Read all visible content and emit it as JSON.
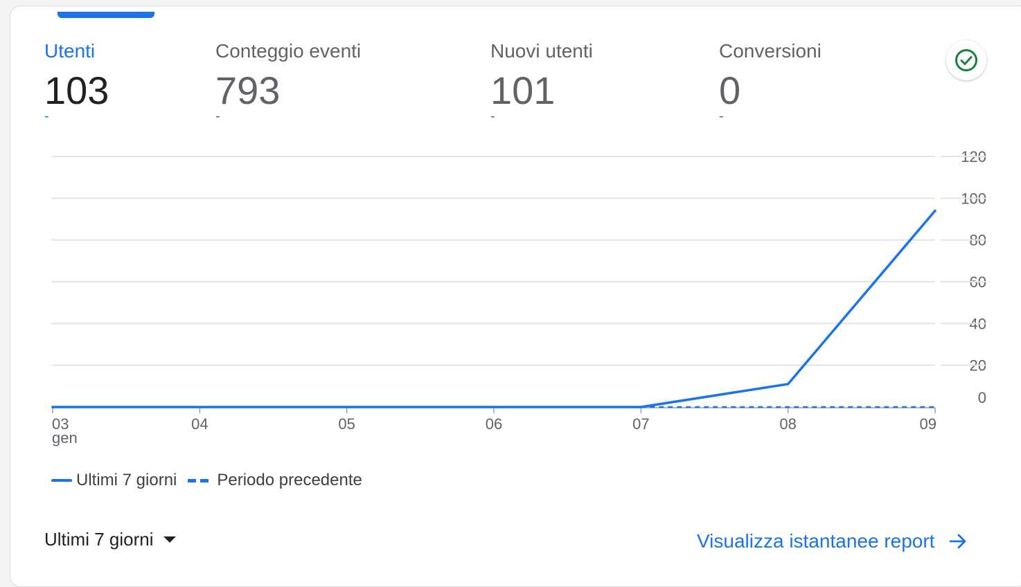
{
  "metrics": [
    {
      "label": "Utenti",
      "value": "103",
      "change": "-"
    },
    {
      "label": "Conteggio eventi",
      "value": "793",
      "change": "-"
    },
    {
      "label": "Nuovi utenti",
      "value": "101",
      "change": "-"
    },
    {
      "label": "Conversioni",
      "value": "0",
      "change": "-"
    }
  ],
  "colors": {
    "accent": "#1a73e8",
    "status_ok": "#188038"
  },
  "icons": {
    "status": "check-circle-icon",
    "dropdown": "caret-down-icon",
    "link": "arrow-right-icon"
  },
  "chart_data": {
    "type": "line",
    "categories": [
      "03",
      "04",
      "05",
      "06",
      "07",
      "08",
      "09"
    ],
    "x_sublabel": "gen",
    "ylim": [
      0,
      120
    ],
    "y_ticks": [
      0,
      20,
      40,
      60,
      80,
      100,
      120
    ],
    "grid": true,
    "legend_position": "bottom-left",
    "series": [
      {
        "name": "Ultimi 7 giorni",
        "style": "solid",
        "values": [
          0,
          0,
          0,
          0,
          0,
          11,
          94
        ]
      },
      {
        "name": "Periodo precedente",
        "style": "dashed",
        "values": [
          null,
          null,
          null,
          null,
          0,
          0,
          0
        ]
      }
    ]
  },
  "legend": {
    "current": "Ultimi 7 giorni",
    "previous": "Periodo precedente"
  },
  "footer": {
    "range_label": "Ultimi 7 giorni",
    "link_label": "Visualizza istantanee report"
  }
}
